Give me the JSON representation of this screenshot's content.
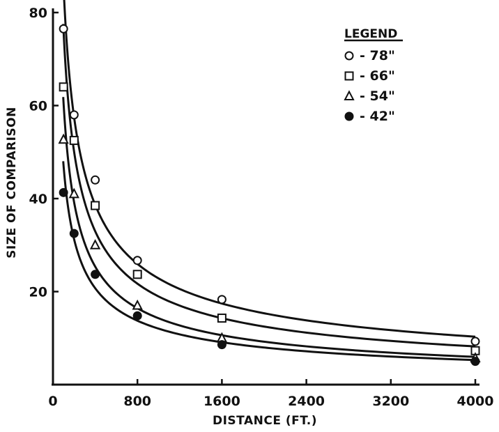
{
  "chart_data": {
    "type": "scatter",
    "title": "",
    "xlabel": "DISTANCE (FT.)",
    "ylabel": "SIZE OF COMPARISON",
    "xlim": [
      0,
      4000
    ],
    "ylim": [
      0,
      80
    ],
    "xticks": [
      0,
      800,
      1600,
      2400,
      3200,
      4000
    ],
    "yticks": [
      20,
      40,
      60,
      80
    ],
    "x_tick_labels": [
      "0",
      "800",
      "1600",
      "2400",
      "3200",
      "4000"
    ],
    "y_tick_labels": [
      "20",
      "40",
      "60",
      "80"
    ],
    "grid": false,
    "legend": {
      "title": "LEGEND",
      "placement": "top-right"
    },
    "x": [
      100,
      200,
      400,
      800,
      1600,
      4000
    ],
    "series": [
      {
        "name": "- 78\"",
        "marker": "open-circle",
        "values": [
          76.5,
          58,
          44,
          26.7,
          18.3,
          9.3
        ]
      },
      {
        "name": "- 66\"",
        "marker": "open-square",
        "values": [
          64,
          52.5,
          38.5,
          23.7,
          14.3,
          7.3
        ]
      },
      {
        "name": "- 54\"",
        "marker": "open-triangle",
        "values": [
          52.7,
          41,
          30,
          17,
          10,
          5.7
        ]
      },
      {
        "name": "- 42\"",
        "marker": "filled-circle",
        "values": [
          41.3,
          32.5,
          23.7,
          14.8,
          8.6,
          5
        ]
      }
    ]
  }
}
